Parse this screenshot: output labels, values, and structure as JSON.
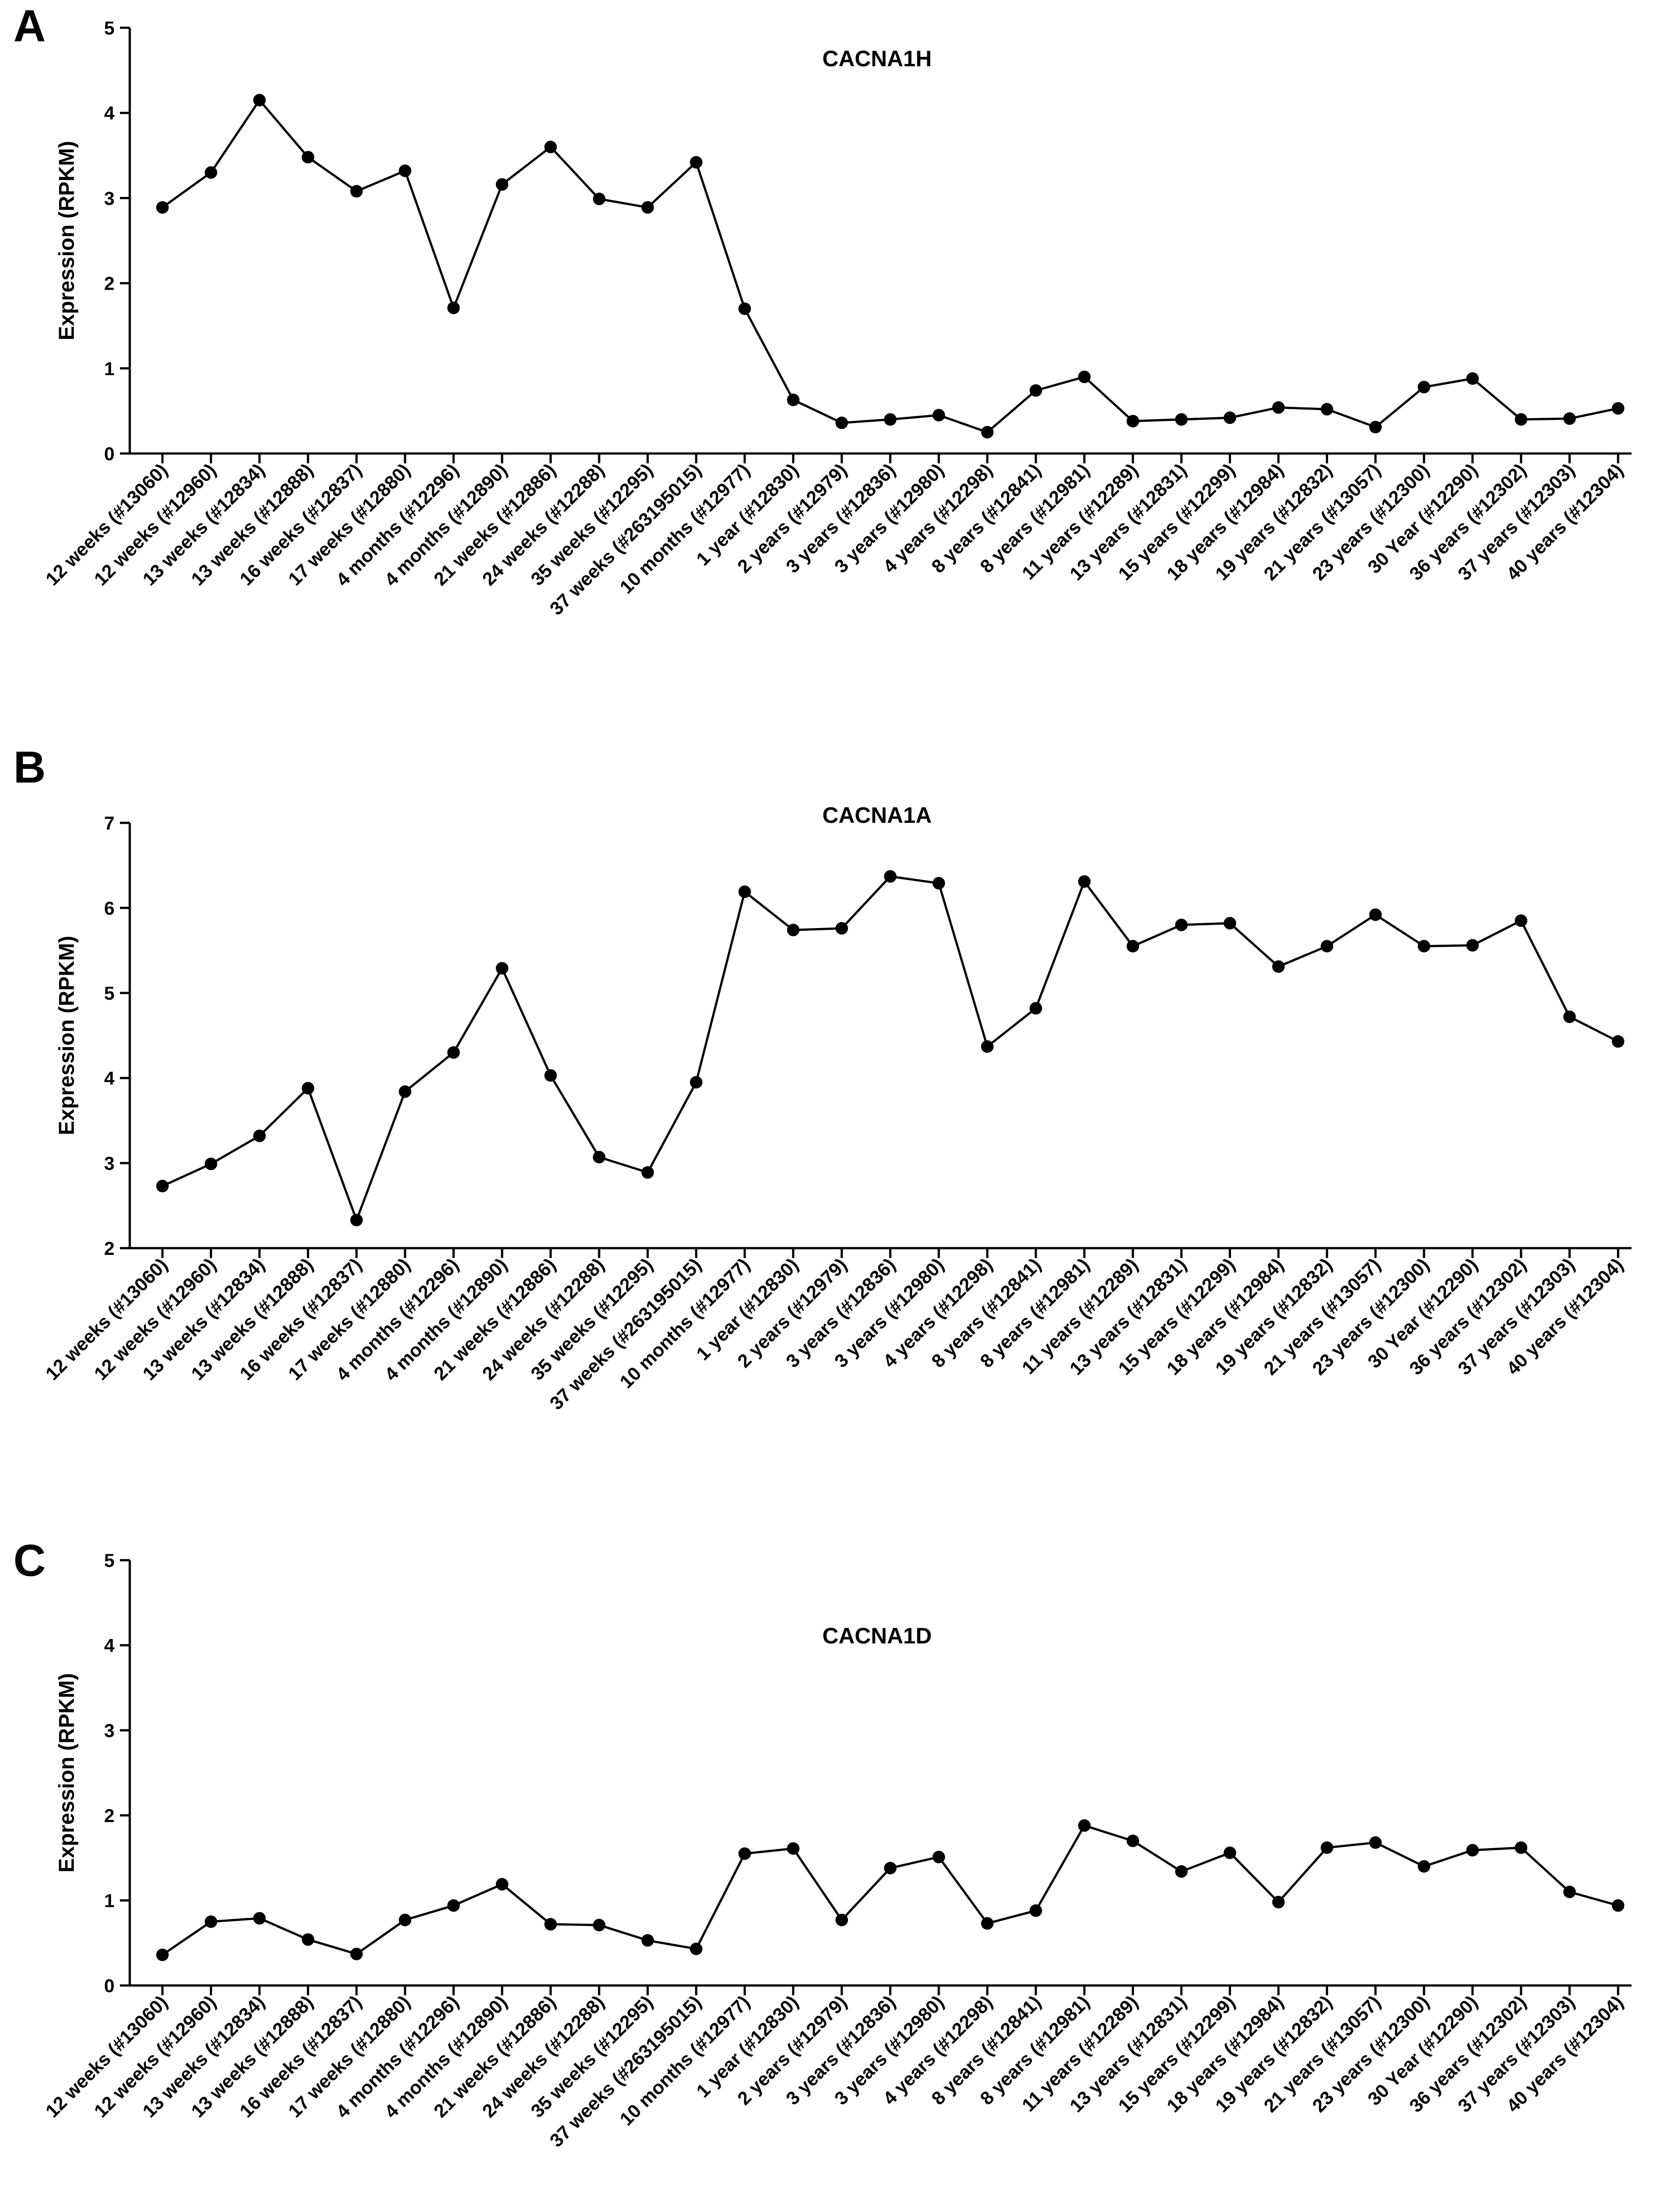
{
  "chart_data": [
    {
      "type": "line",
      "panel": "A",
      "title": "CACNA1H",
      "xlabel": "",
      "ylabel": "Expression (RPKM)",
      "ylim": [
        0,
        5
      ],
      "yticks": [
        "0",
        "1",
        "2",
        "3",
        "4",
        "5"
      ],
      "categories": [
        "12 weeks (#13060)",
        "12 weeks (#12960)",
        "13 weeks (#12834)",
        "13 weeks (#12888)",
        "16 weeks (#12837)",
        "17 weeks (#12880)",
        "4 months (#12296)",
        "4 months (#12890)",
        "21 weeks (#12886)",
        "24 weeks (#12288)",
        "35 weeks (#12295)",
        "37 weeks (#263195015)",
        "10 months (#12977)",
        "1 year (#12830)",
        "2 years (#12979)",
        "3 years (#12836)",
        "3 years (#12980)",
        "4 years (#12298)",
        "8 years (#12841)",
        "8 years (#12981)",
        "11 years (#12289)",
        "13 years (#12831)",
        "15 years (#12299)",
        "18 years (#12984)",
        "19 years (#12832)",
        "21 years (#13057)",
        "23 years (#12300)",
        "30 Year (#12290)",
        "36 years (#12302)",
        "37 years (#12303)",
        "40 years (#12304)"
      ],
      "values": [
        2.89,
        3.3,
        4.15,
        3.48,
        3.08,
        3.32,
        1.71,
        3.16,
        3.6,
        2.99,
        2.89,
        3.42,
        1.7,
        0.63,
        0.36,
        0.4,
        0.45,
        0.25,
        0.74,
        0.9,
        0.38,
        0.4,
        0.42,
        0.54,
        0.52,
        0.31,
        0.78,
        0.88,
        0.4,
        0.41,
        0.53
      ]
    },
    {
      "type": "line",
      "panel": "B",
      "title": "CACNA1A",
      "xlabel": "",
      "ylabel": "Expression (RPKM)",
      "ylim": [
        2,
        7
      ],
      "yticks": [
        "2",
        "3",
        "4",
        "5",
        "6",
        "7"
      ],
      "categories": [
        "12 weeks (#13060)",
        "12 weeks (#12960)",
        "13 weeks (#12834)",
        "13 weeks (#12888)",
        "16 weeks (#12837)",
        "17 weeks (#12880)",
        "4 months (#12296)",
        "4 months (#12890)",
        "21 weeks (#12886)",
        "24 weeks (#12288)",
        "35 weeks (#12295)",
        "37 weeks (#263195015)",
        "10 months (#12977)",
        "1 year (#12830)",
        "2 years (#12979)",
        "3 years (#12836)",
        "3 years (#12980)",
        "4 years (#12298)",
        "8 years (#12841)",
        "8 years (#12981)",
        "11 years (#12289)",
        "13 years (#12831)",
        "15 years (#12299)",
        "18 years (#12984)",
        "19 years (#12832)",
        "21 years (#13057)",
        "23 years (#12300)",
        "30 Year (#12290)",
        "36 years (#12302)",
        "37 years (#12303)",
        "40 years (#12304)"
      ],
      "values": [
        2.73,
        2.99,
        3.32,
        3.88,
        2.33,
        3.84,
        4.3,
        5.29,
        4.03,
        3.07,
        2.89,
        3.95,
        6.19,
        5.74,
        5.76,
        6.37,
        6.29,
        4.37,
        4.82,
        6.31,
        5.55,
        5.8,
        5.82,
        5.31,
        5.55,
        5.92,
        5.55,
        5.56,
        5.85,
        4.72,
        4.43
      ]
    },
    {
      "type": "line",
      "panel": "C",
      "title": "CACNA1D",
      "xlabel": "",
      "ylabel": "Expression (RPKM)",
      "ylim": [
        0,
        5
      ],
      "yticks": [
        "0",
        "1",
        "2",
        "3",
        "4",
        "5"
      ],
      "categories": [
        "12 weeks (#13060)",
        "12 weeks (#12960)",
        "13 weeks (#12834)",
        "13 weeks (#12888)",
        "16 weeks (#12837)",
        "17 weeks (#12880)",
        "4 months (#12296)",
        "4 months (#12890)",
        "21 weeks (#12886)",
        "24 weeks (#12288)",
        "35 weeks (#12295)",
        "37 weeks (#263195015)",
        "10 months (#12977)",
        "1 year (#12830)",
        "2 years (#12979)",
        "3 years (#12836)",
        "3 years (#12980)",
        "4 years (#12298)",
        "8 years (#12841)",
        "8 years (#12981)",
        "11 years (#12289)",
        "13 years (#12831)",
        "15 years (#12299)",
        "18 years (#12984)",
        "19 years (#12832)",
        "21 years (#13057)",
        "23 years (#12300)",
        "30 Year (#12290)",
        "36 years (#12302)",
        "37 years (#12303)",
        "40 years (#12304)"
      ],
      "values": [
        0.36,
        0.75,
        0.79,
        0.54,
        0.37,
        0.77,
        0.94,
        1.19,
        0.72,
        0.71,
        0.53,
        0.43,
        1.55,
        1.61,
        0.77,
        1.38,
        1.51,
        0.73,
        0.88,
        1.88,
        1.7,
        1.34,
        1.56,
        0.98,
        1.62,
        1.68,
        1.4,
        1.59,
        1.62,
        1.1,
        0.94
      ]
    }
  ]
}
